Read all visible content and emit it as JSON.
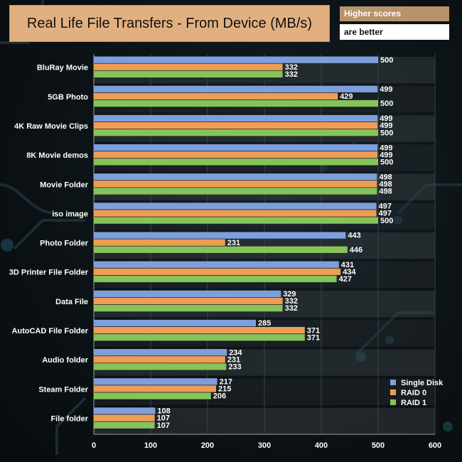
{
  "title": "Real Life File Transfers - From Device (MB/s)",
  "note": {
    "line1": "Higher scores",
    "line2": "are better"
  },
  "colors": {
    "single": "#7e9fdc",
    "raid0": "#ee9d55",
    "raid1": "#86c35b",
    "title_bg": "#e2b080",
    "note_bg": "#b8926a"
  },
  "chart_data": {
    "type": "bar",
    "orientation": "horizontal",
    "title": "Real Life File Transfers - From Device (MB/s)",
    "categories": [
      "BluRay Movie",
      "5GB Photo",
      "4K Raw Movie Clips",
      "8K Movie demos",
      "Movie Folder",
      "iso image",
      "Photo Folder",
      "3D Printer File Folder",
      "Data File",
      "AutoCAD File Folder",
      "Audio folder",
      "Steam Folder",
      "File folder"
    ],
    "series": [
      {
        "name": "Single Disk",
        "values": [
          500,
          499,
          499,
          499,
          498,
          497,
          443,
          431,
          329,
          285,
          234,
          217,
          108
        ]
      },
      {
        "name": "RAID 0",
        "values": [
          332,
          429,
          499,
          499,
          498,
          497,
          231,
          434,
          332,
          371,
          231,
          215,
          107
        ]
      },
      {
        "name": "RAID 1",
        "values": [
          332,
          500,
          500,
          500,
          498,
          500,
          446,
          427,
          332,
          371,
          233,
          206,
          107
        ]
      }
    ],
    "xlim": [
      0,
      600
    ],
    "xticks": [
      0,
      100,
      200,
      300,
      400,
      500,
      600
    ],
    "legend_position": "bottom-right",
    "xlabel": "",
    "ylabel": ""
  }
}
